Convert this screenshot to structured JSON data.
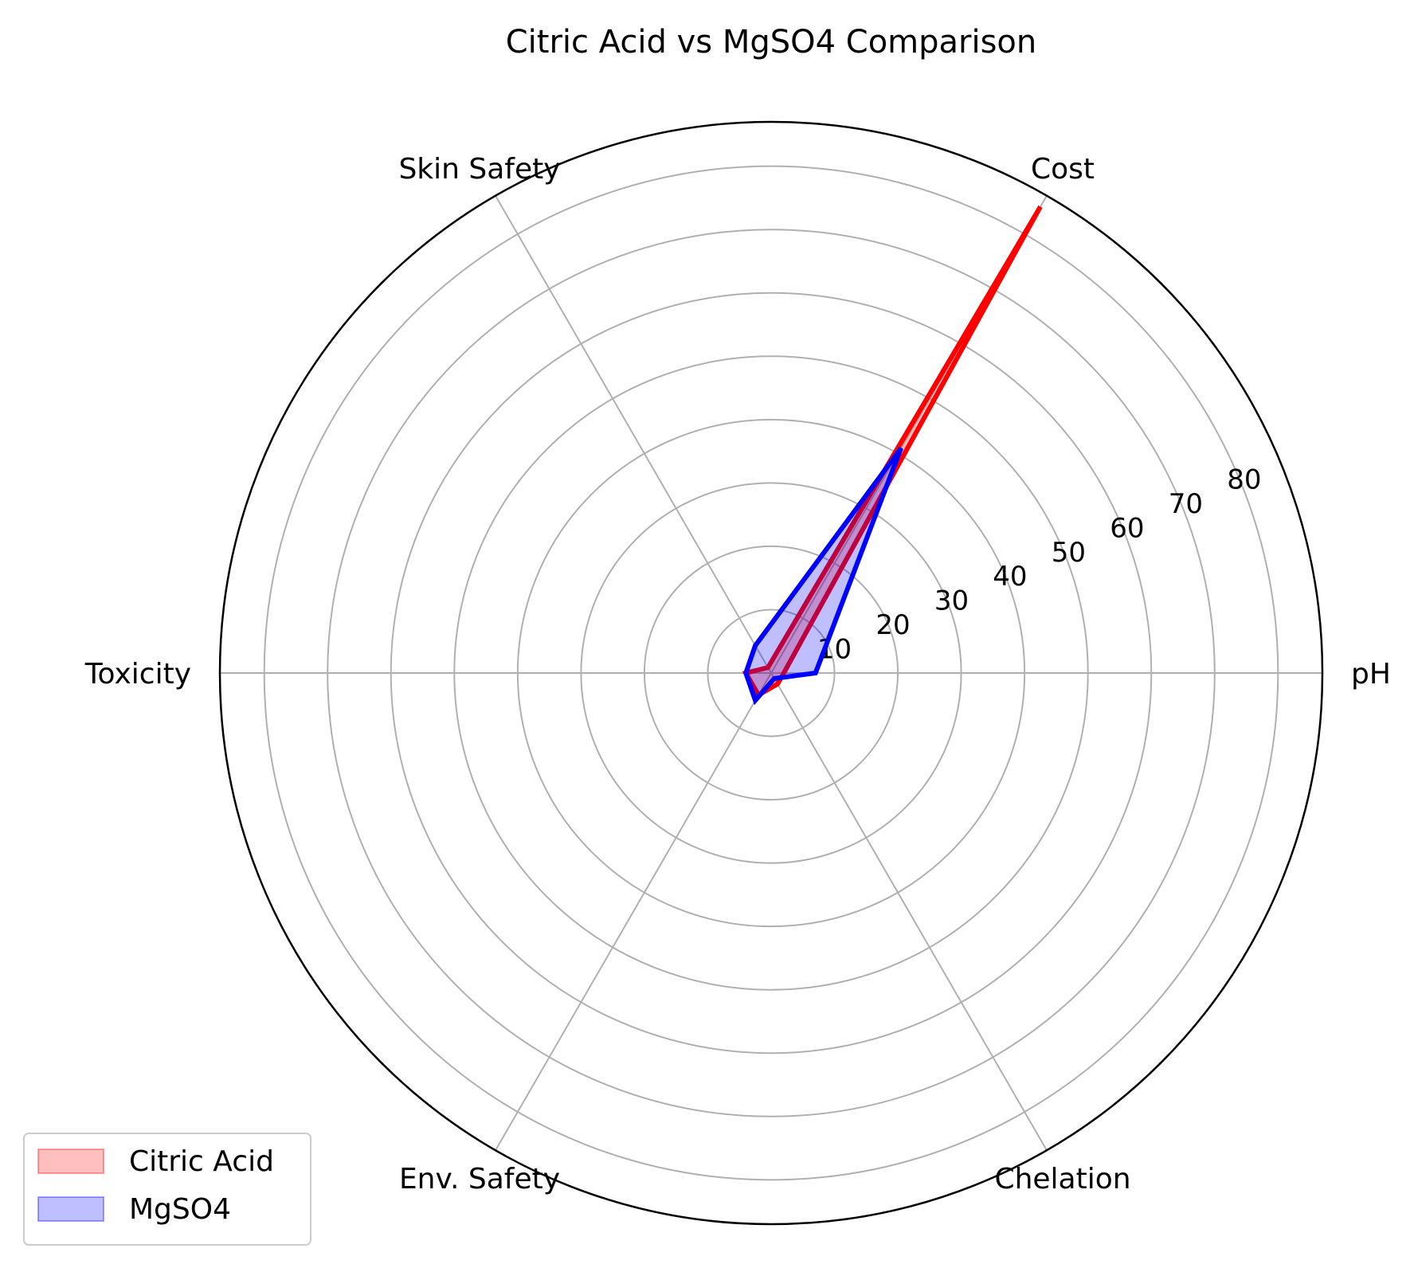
{
  "chart_data": {
    "type": "radar",
    "title": "Citric Acid vs MgSO4 Comparison",
    "categories": [
      "pH",
      "Cost",
      "Skin Safety",
      "Toxicity",
      "Env. Safety",
      "Chelation"
    ],
    "radial_ticks": [
      10,
      20,
      30,
      40,
      50,
      60,
      70,
      80
    ],
    "rlim": [
      0,
      87
    ],
    "grid": true,
    "legend_position": "lower-left",
    "series": [
      {
        "name": "Citric Acid",
        "color": "#ff0000",
        "values": [
          2,
          85,
          1,
          4,
          4,
          2
        ]
      },
      {
        "name": "MgSO4",
        "color": "#0000ff",
        "values": [
          7,
          41,
          5,
          4,
          5,
          1
        ]
      }
    ]
  }
}
